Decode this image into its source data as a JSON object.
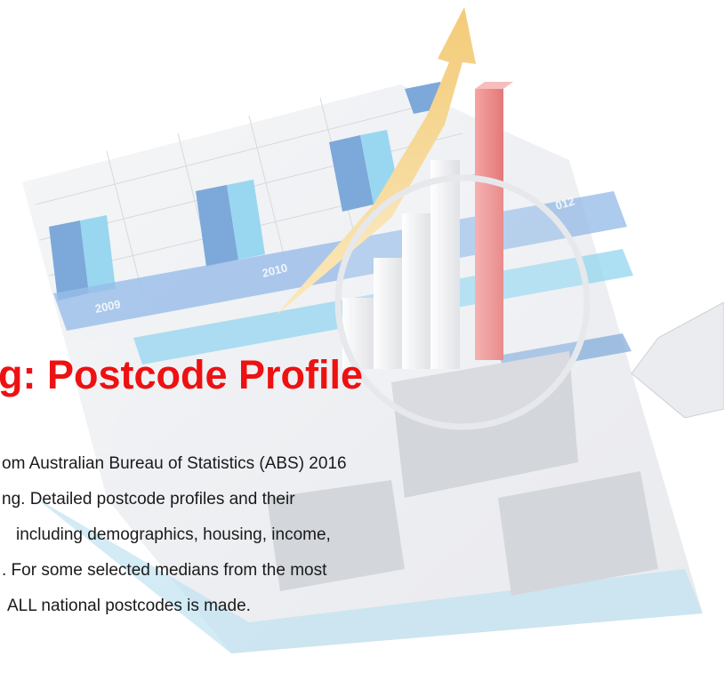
{
  "heading": "g: Postcode Profile",
  "body_lines": [
    "om Australian Bureau of Statistics (ABS) 2016",
    "ng. Detailed postcode profiles and their",
    "including demographics, housing, income,",
    ". For some selected medians from the most",
    "ALL national postcodes is made."
  ],
  "illustration": {
    "labels": [
      "2009",
      "2010",
      "012"
    ]
  }
}
